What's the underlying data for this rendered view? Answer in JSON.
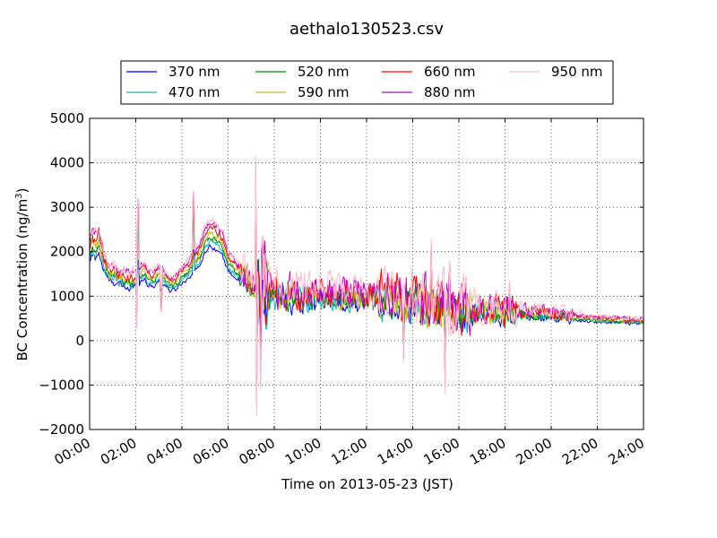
{
  "chart_data": {
    "type": "line",
    "title": "aethalo130523.csv",
    "xlabel": "Time on 2013-05-23 (JST)",
    "ylabel": "BC Concentration (ng/m³)",
    "ylabel_main": "BC Concentration (ng/m",
    "ylabel_sup": "3",
    "ylabel_end": ")",
    "xlim_hours": [
      0,
      24
    ],
    "ylim": [
      -2000,
      5000
    ],
    "grid": true,
    "legend_position": "top",
    "x_ticks": [
      {
        "hour": 0,
        "label": "00:00"
      },
      {
        "hour": 2,
        "label": "02:00"
      },
      {
        "hour": 4,
        "label": "04:00"
      },
      {
        "hour": 6,
        "label": "06:00"
      },
      {
        "hour": 8,
        "label": "08:00"
      },
      {
        "hour": 10,
        "label": "10:00"
      },
      {
        "hour": 12,
        "label": "12:00"
      },
      {
        "hour": 14,
        "label": "14:00"
      },
      {
        "hour": 16,
        "label": "16:00"
      },
      {
        "hour": 18,
        "label": "18:00"
      },
      {
        "hour": 20,
        "label": "20:00"
      },
      {
        "hour": 22,
        "label": "22:00"
      },
      {
        "hour": 24,
        "label": "24:00"
      }
    ],
    "y_ticks": [
      {
        "value": 5000,
        "label": "5000"
      },
      {
        "value": 4000,
        "label": "4000"
      },
      {
        "value": 3000,
        "label": "3000"
      },
      {
        "value": 2000,
        "label": "2000"
      },
      {
        "value": 1000,
        "label": "1000"
      },
      {
        "value": 0,
        "label": "0"
      },
      {
        "value": -1000,
        "label": "−1000"
      },
      {
        "value": -2000,
        "label": "−2000"
      }
    ],
    "baseline": {
      "x_hours": [
        0,
        0.1,
        0.25,
        0.4,
        0.5,
        0.6,
        0.75,
        0.9,
        1.0,
        1.25,
        1.5,
        1.75,
        2.0,
        2.25,
        2.4,
        2.5,
        2.75,
        3.0,
        3.25,
        3.5,
        3.75,
        4.0,
        4.25,
        4.5,
        4.75,
        5.0,
        5.25,
        5.5,
        5.75,
        6.0,
        6.25,
        6.5,
        6.75,
        7.0,
        7.25,
        7.5,
        8,
        9,
        10,
        11,
        12,
        13,
        14,
        15,
        16,
        17,
        18,
        19,
        20,
        21,
        22,
        23,
        24
      ],
      "y": [
        1900,
        2050,
        2000,
        2150,
        1900,
        1700,
        1550,
        1400,
        1450,
        1350,
        1300,
        1250,
        1300,
        1450,
        1500,
        1350,
        1300,
        1450,
        1350,
        1200,
        1250,
        1400,
        1500,
        1650,
        1800,
        2150,
        2300,
        2200,
        2050,
        1700,
        1550,
        1450,
        1300,
        1200,
        1100,
        1050,
        1000,
        950,
        950,
        950,
        950,
        900,
        800,
        750,
        650,
        600,
        600,
        580,
        560,
        500,
        450,
        430,
        400
      ]
    },
    "series": [
      {
        "name": "370 nm",
        "color": "#0000ff",
        "scale": 0.93,
        "noise": 1.0
      },
      {
        "name": "470 nm",
        "color": "#00bfbf",
        "scale": 0.98,
        "noise": 1.05
      },
      {
        "name": "520 nm",
        "color": "#008000",
        "scale": 1.02,
        "noise": 1.1
      },
      {
        "name": "590 nm",
        "color": "#bfbf00",
        "scale": 1.06,
        "noise": 1.2
      },
      {
        "name": "660 nm",
        "color": "#ff0000",
        "scale": 1.12,
        "noise": 1.3
      },
      {
        "name": "880 nm",
        "color": "#bf00bf",
        "scale": 1.17,
        "noise": 1.45
      },
      {
        "name": "950 nm",
        "color": "#ffc0cb",
        "scale": 1.2,
        "noise": 1.6
      }
    ]
  }
}
